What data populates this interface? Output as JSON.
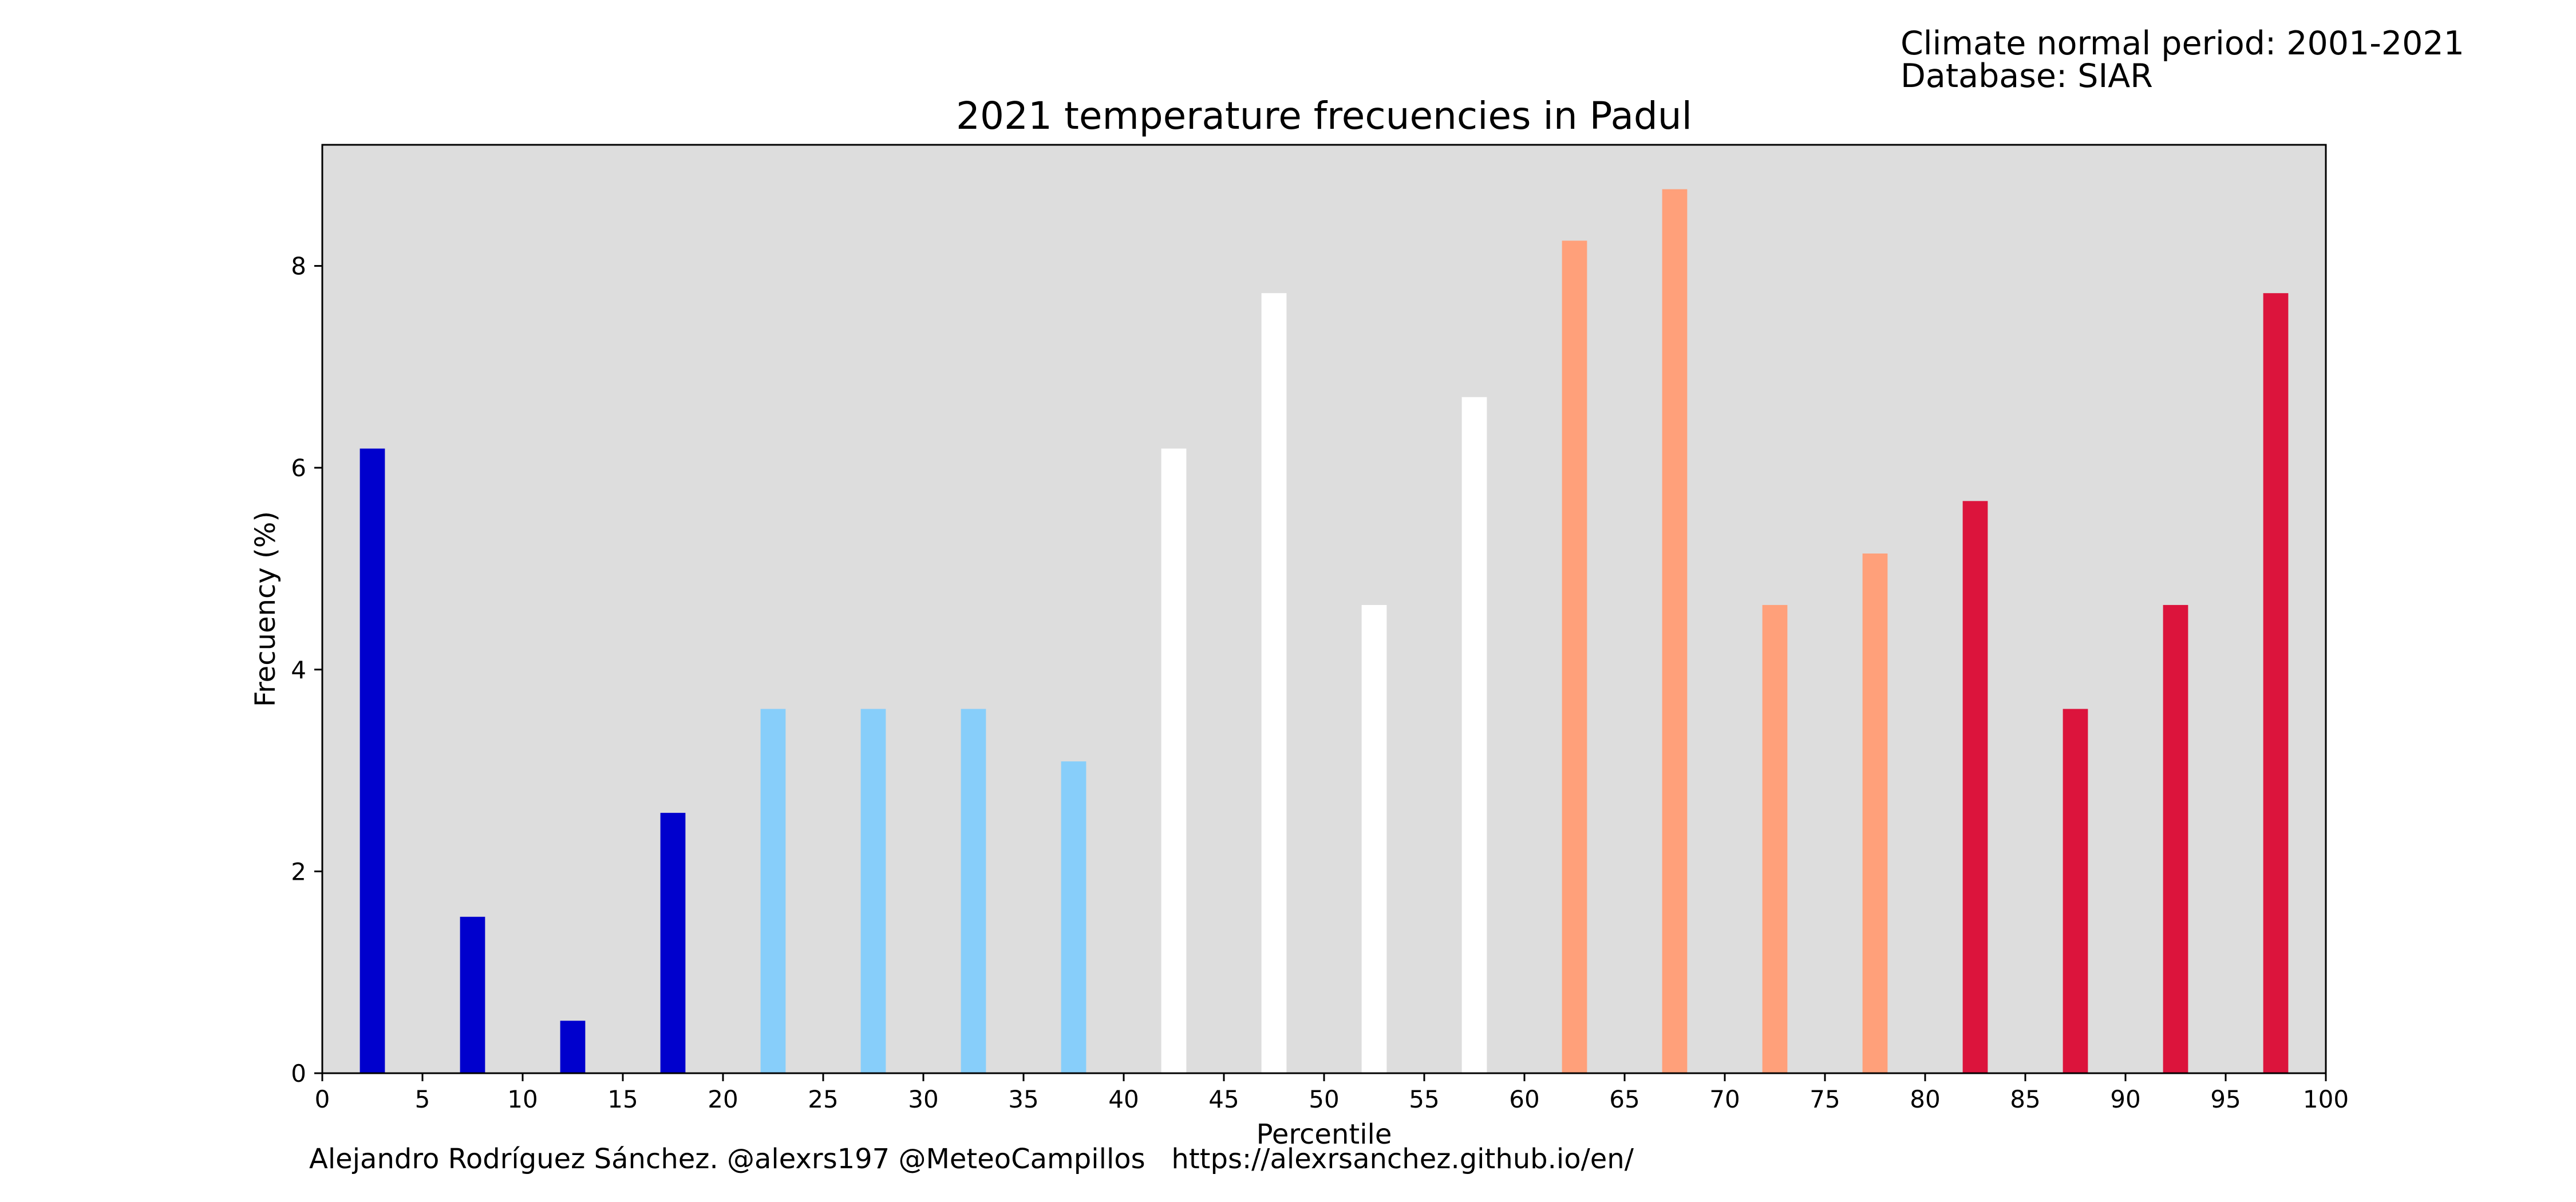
{
  "info": {
    "period": "Climate normal period: 2001-2021",
    "database": "Database: SIAR"
  },
  "footer": "Alejandro Rodríguez Sánchez. @alexrs197 @MeteoCampillos   https://alexrsanchez.github.io/en/",
  "colors": {
    "background": "#dddddd",
    "very_cold": "#0000cd",
    "cold": "#87cefa",
    "normal": "#ffffff",
    "warm": "#ffa07a",
    "very_warm": "#dc143c"
  },
  "chart_data": {
    "type": "bar",
    "title": "2021 temperature frecuencies in Padul",
    "xlabel": "Percentile",
    "ylabel": "Frecuency (%)",
    "xlim": [
      0,
      100
    ],
    "ylim": [
      0,
      9.2
    ],
    "grid": false,
    "x_ticks": [
      0,
      5,
      10,
      15,
      20,
      25,
      30,
      35,
      40,
      45,
      50,
      55,
      60,
      65,
      70,
      75,
      80,
      85,
      90,
      95,
      100
    ],
    "y_ticks": [
      0,
      2,
      4,
      6,
      8
    ],
    "bar_width": 1.25,
    "bars": [
      {
        "x": 2.5,
        "value": 6.19,
        "color": "#0000cd"
      },
      {
        "x": 7.5,
        "value": 1.55,
        "color": "#0000cd"
      },
      {
        "x": 12.5,
        "value": 0.52,
        "color": "#0000cd"
      },
      {
        "x": 17.5,
        "value": 2.58,
        "color": "#0000cd"
      },
      {
        "x": 22.5,
        "value": 3.61,
        "color": "#87cefa"
      },
      {
        "x": 27.5,
        "value": 3.61,
        "color": "#87cefa"
      },
      {
        "x": 32.5,
        "value": 3.61,
        "color": "#87cefa"
      },
      {
        "x": 37.5,
        "value": 3.09,
        "color": "#87cefa"
      },
      {
        "x": 42.5,
        "value": 6.19,
        "color": "#ffffff"
      },
      {
        "x": 47.5,
        "value": 7.73,
        "color": "#ffffff"
      },
      {
        "x": 52.5,
        "value": 4.64,
        "color": "#ffffff"
      },
      {
        "x": 57.5,
        "value": 6.7,
        "color": "#ffffff"
      },
      {
        "x": 62.5,
        "value": 8.25,
        "color": "#ffa07a"
      },
      {
        "x": 67.5,
        "value": 8.76,
        "color": "#ffa07a"
      },
      {
        "x": 72.5,
        "value": 4.64,
        "color": "#ffa07a"
      },
      {
        "x": 77.5,
        "value": 5.15,
        "color": "#ffa07a"
      },
      {
        "x": 82.5,
        "value": 5.67,
        "color": "#dc143c"
      },
      {
        "x": 87.5,
        "value": 3.61,
        "color": "#dc143c"
      },
      {
        "x": 92.5,
        "value": 4.64,
        "color": "#dc143c"
      },
      {
        "x": 97.5,
        "value": 7.73,
        "color": "#dc143c"
      }
    ]
  }
}
